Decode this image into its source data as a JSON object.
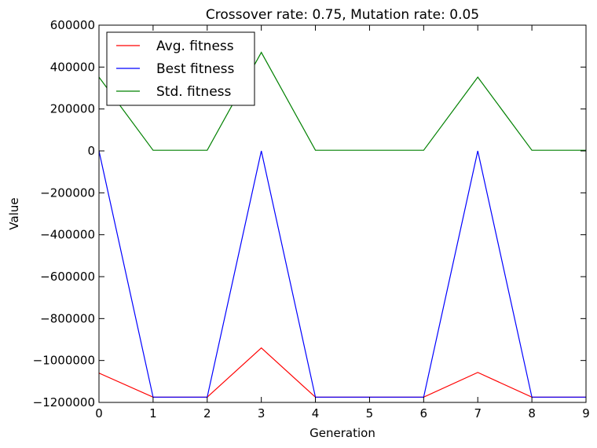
{
  "chart_data": {
    "type": "line",
    "title": "Crossover rate: 0.75, Mutation rate: 0.05",
    "xlabel": "Generation",
    "ylabel": "Value",
    "xlim": [
      0,
      9
    ],
    "ylim": [
      -1200000,
      600000
    ],
    "grid": false,
    "legend_position": "top-left",
    "x": [
      0,
      1,
      2,
      3,
      4,
      5,
      6,
      7,
      8,
      9
    ],
    "x_ticks": [
      "0",
      "1",
      "2",
      "3",
      "4",
      "5",
      "6",
      "7",
      "8",
      "9"
    ],
    "y_ticks": [
      {
        "value": 600000,
        "label": "600000"
      },
      {
        "value": 400000,
        "label": "400000"
      },
      {
        "value": 200000,
        "label": "200000"
      },
      {
        "value": 0,
        "label": "0"
      },
      {
        "value": -200000,
        "label": "−200000"
      },
      {
        "value": -400000,
        "label": "−400000"
      },
      {
        "value": -600000,
        "label": "−600000"
      },
      {
        "value": -800000,
        "label": "−800000"
      },
      {
        "value": -1000000,
        "label": "−1000000"
      },
      {
        "value": -1200000,
        "label": "−1200000"
      }
    ],
    "series": [
      {
        "name": "Avg. fitness",
        "color": "#ff0000",
        "values": [
          -1060000,
          -1175000,
          -1175000,
          -940000,
          -1175000,
          -1175000,
          -1175000,
          -1057000,
          -1175000,
          -1175000
        ]
      },
      {
        "name": "Best fitness",
        "color": "#0000ff",
        "values": [
          0,
          -1175000,
          -1175000,
          0,
          -1175000,
          -1175000,
          -1175000,
          0,
          -1175000,
          -1175000
        ]
      },
      {
        "name": "Std. fitness",
        "color": "#008000",
        "values": [
          352000,
          3000,
          3000,
          470000,
          3000,
          3000,
          3000,
          352000,
          3000,
          3000
        ]
      }
    ]
  }
}
